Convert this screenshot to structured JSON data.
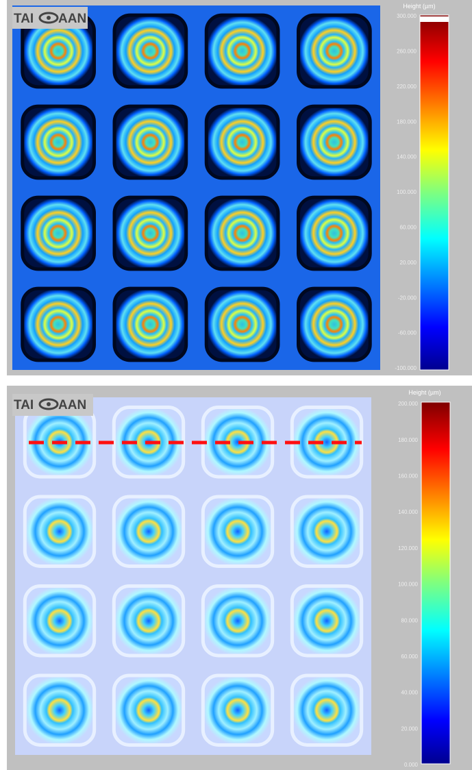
{
  "panels": [
    {
      "logo": {
        "left": "TAI",
        "right": "AAN"
      },
      "colorbar": {
        "title": "Height (µm)",
        "ticks": [
          "300.000",
          "260.000",
          "220.000",
          "180.000",
          "140.000",
          "100.000",
          "60.000",
          "20.000",
          "-20.000",
          "-60.000",
          "-100.000"
        ]
      }
    },
    {
      "logo": {
        "left": "TAI",
        "right": "AAN"
      },
      "colorbar": {
        "title": "Height (µm)",
        "ticks": [
          "200.000",
          "180.000",
          "160.000",
          "140.000",
          "120.000",
          "100.000",
          "80.000",
          "60.000",
          "40.000",
          "20.000",
          "0.000"
        ]
      }
    }
  ]
}
